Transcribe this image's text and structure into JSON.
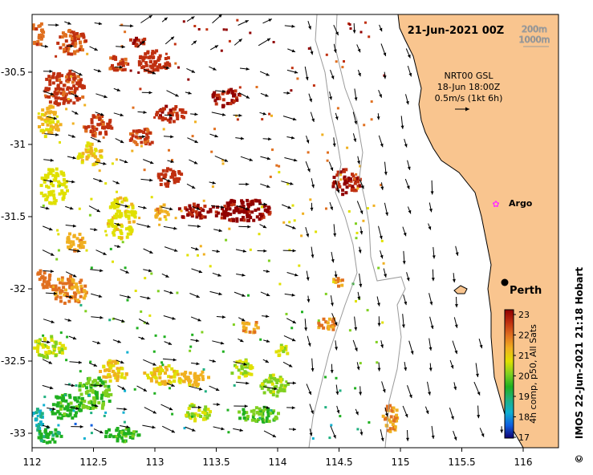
{
  "map": {
    "date_label": "21-Jun-2021 00Z",
    "contour_labels": [
      "200m",
      "1000m"
    ],
    "current_source": "NRT00 GSL",
    "current_time": "18-Jun 18:00Z",
    "current_scale": "0.5m/s (1kt 6h)",
    "places": [
      {
        "label": "Argo",
        "kind": "argo-float"
      },
      {
        "label": "Perth",
        "kind": "city"
      }
    ],
    "credit": "IMOS 22-Jun-2021 21:18 Hobart",
    "copyright_symbol": "©",
    "land_color": "#f9c58f",
    "colors": {
      "contour": "#9a9a9a",
      "arrow": "#000000",
      "argo": "#ff33ff"
    }
  },
  "axes": {
    "x_ticks": [
      "112",
      "112.5",
      "113",
      "113.5",
      "114",
      "114.5",
      "115",
      "115.5",
      "116"
    ],
    "y_ticks": [
      "-30.5",
      "-31",
      "-31.5",
      "-32",
      "-32.5",
      "-33"
    ]
  },
  "colorbar": {
    "label": "4h comp, p50, All Sats",
    "ticks": [
      "23",
      "22",
      "21",
      "20",
      "19",
      "18",
      "17"
    ],
    "range": [
      17,
      23
    ],
    "stops": [
      "#100070",
      "#1060e0",
      "#10b0d0",
      "#20b080",
      "#20b020",
      "#80d020",
      "#e0e000",
      "#f0b020",
      "#e07020",
      "#c03010",
      "#900000"
    ]
  }
}
